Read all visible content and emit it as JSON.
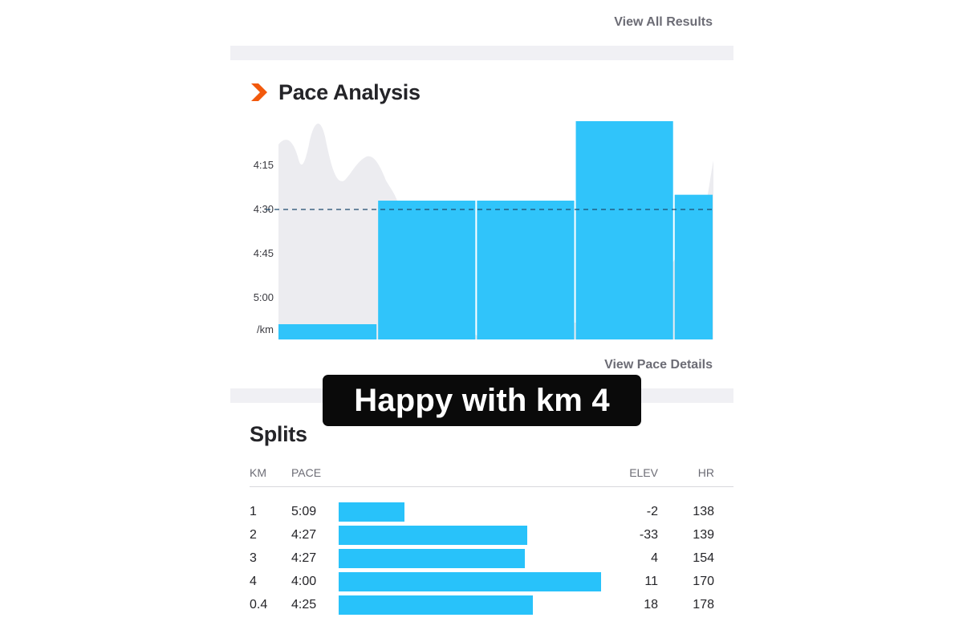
{
  "links": {
    "view_all_results": "View All Results",
    "view_pace_details": "View Pace Details"
  },
  "pace_section": {
    "title": "Pace Analysis",
    "icon": "orange-chevron-icon",
    "accent_color": "#f2590c"
  },
  "chart_data": {
    "type": "bar",
    "ylabel": "/km",
    "y_tick_labels": [
      "4:15",
      "4:30",
      "4:45",
      "5:00"
    ],
    "y_tick_values_sec": [
      255,
      270,
      285,
      300
    ],
    "categories": [
      "1",
      "2",
      "3",
      "4",
      "0.4"
    ],
    "values_sec_per_km": [
      309,
      267,
      267,
      240,
      265
    ],
    "distances_km": [
      1,
      1,
      1,
      1,
      0.4
    ],
    "average_line_sec": 270,
    "bar_color": "#28c2fa",
    "average_line_color": "#1c4a6e",
    "background_area_color": "#ececf0"
  },
  "caption": "Happy with km 4",
  "splits": {
    "title": "Splits",
    "headers": {
      "km": "KM",
      "pace": "PACE",
      "elev": "ELEV",
      "hr": "HR"
    },
    "rows": [
      {
        "km": "1",
        "pace": "5:09",
        "elev": "-2",
        "hr": "138"
      },
      {
        "km": "2",
        "pace": "4:27",
        "elev": "-33",
        "hr": "139"
      },
      {
        "km": "3",
        "pace": "4:27",
        "elev": "4",
        "hr": "154"
      },
      {
        "km": "4",
        "pace": "4:00",
        "elev": "11",
        "hr": "170"
      },
      {
        "km": "0.4",
        "pace": "4:25",
        "elev": "18",
        "hr": "178"
      }
    ],
    "bar_fraction": [
      0.25,
      0.72,
      0.71,
      1.0,
      0.74
    ]
  }
}
